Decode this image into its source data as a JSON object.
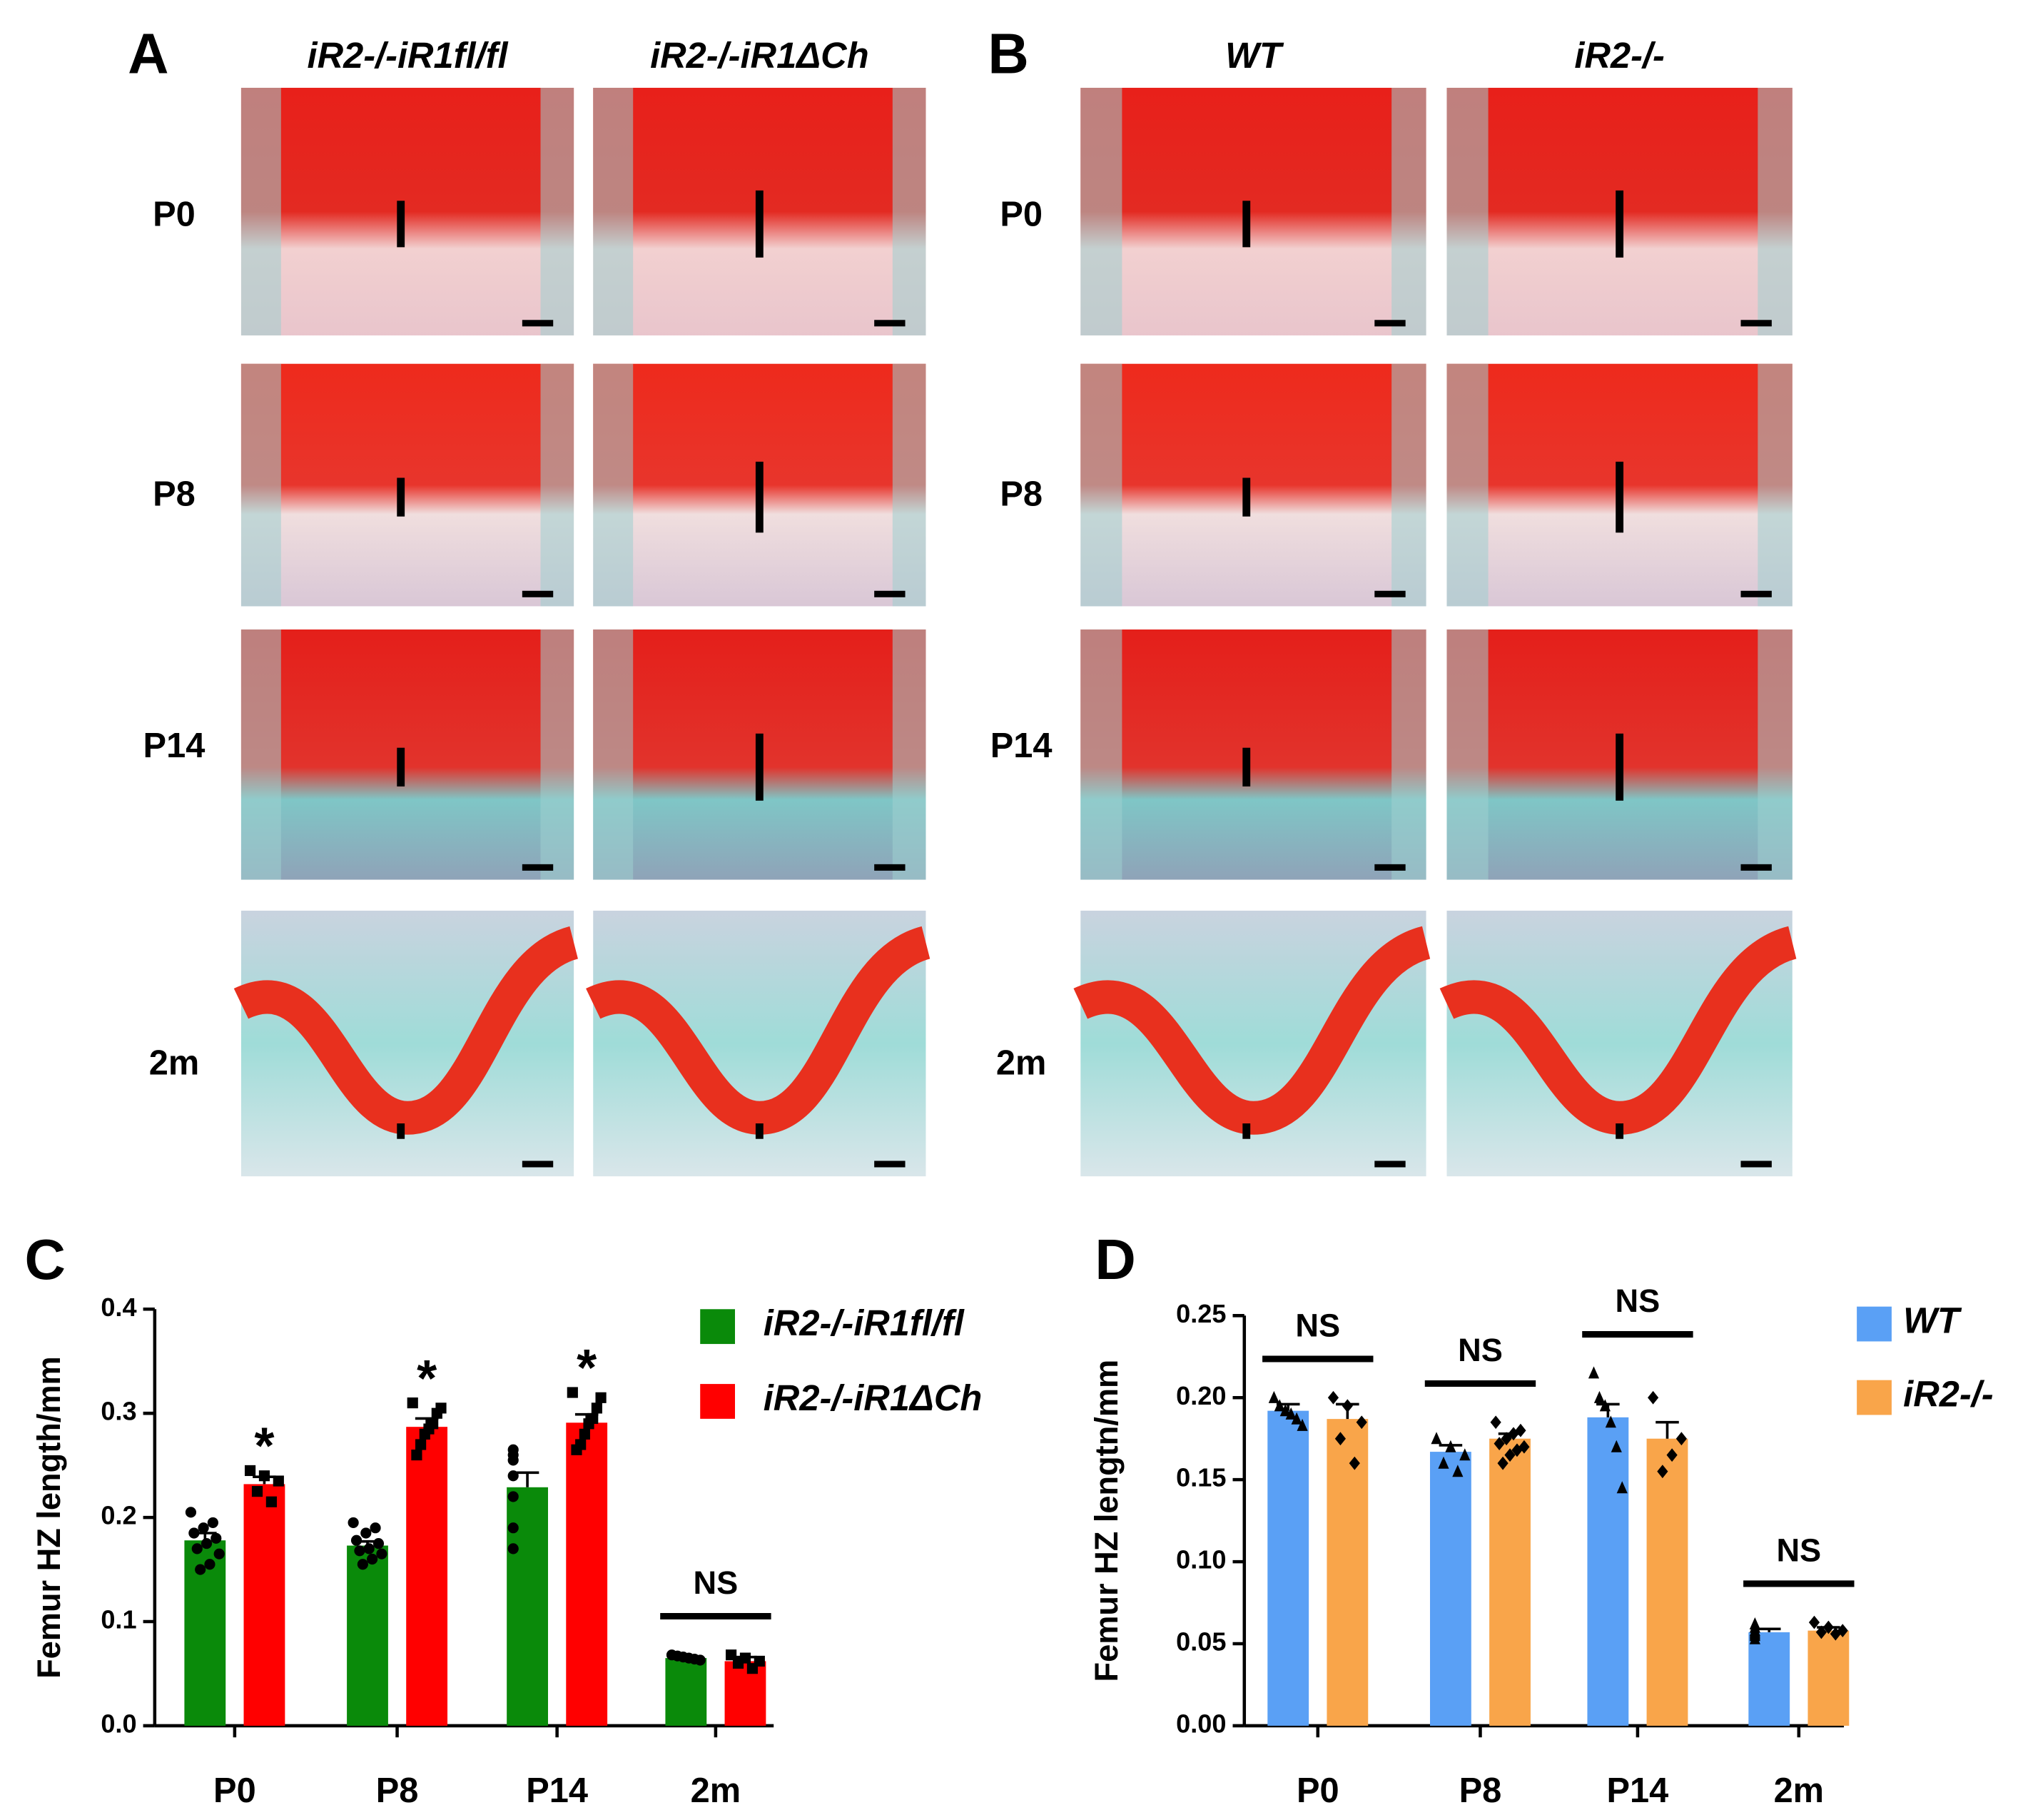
{
  "panels": [
    {
      "label": "A",
      "columns": [
        "iR2-/-iR1fl/fl",
        "iR2-/-iR1ΔCh"
      ],
      "rows": [
        "P0",
        "P8",
        "P14",
        "2m"
      ]
    },
    {
      "label": "B",
      "columns": [
        "WT",
        "iR2-/-"
      ],
      "rows": [
        "P0",
        "P8",
        "P14",
        "2m"
      ]
    }
  ],
  "chart_data": [
    {
      "type": "bar",
      "panel": "C",
      "y_label": "Femur HZ length/mm",
      "categories": [
        "P0",
        "P8",
        "P14",
        "2m"
      ],
      "ylim": [
        0,
        0.4
      ],
      "yticks": [
        {
          "value": 0,
          "label": "0.0"
        },
        0.1,
        0.2,
        0.3,
        0.4
      ],
      "series": [
        {
          "name": "iR2-/-iR1fl/fl",
          "color": "#0a8a0a",
          "marker": "circle",
          "values": [
            0.178,
            0.173,
            0.229,
            0.065
          ],
          "errors": [
            0.007,
            0.004,
            0.014,
            0.002
          ],
          "points": [
            [
              0.205,
              0.195,
              0.19,
              0.185,
              0.18,
              0.175,
              0.17,
              0.165,
              0.155,
              0.15
            ],
            [
              0.195,
              0.19,
              0.185,
              0.178,
              0.175,
              0.17,
              0.168,
              0.165,
              0.16,
              0.155
            ],
            [
              0.265,
              0.26,
              0.255,
              0.24,
              0.22,
              0.19,
              0.17
            ],
            [
              0.068,
              0.067,
              0.066,
              0.065,
              0.064,
              0.063
            ]
          ]
        },
        {
          "name": "iR2-/-iR1ΔCh",
          "color": "#ff0000",
          "marker": "square",
          "values": [
            0.232,
            0.287,
            0.291,
            0.062
          ],
          "errors": [
            0.007,
            0.008,
            0.008,
            0.004
          ],
          "points": [
            [
              0.245,
              0.24,
              0.235,
              0.225,
              0.215
            ],
            [
              0.31,
              0.305,
              0.3,
              0.29,
              0.285,
              0.28,
              0.27,
              0.26
            ],
            [
              0.32,
              0.315,
              0.305,
              0.295,
              0.29,
              0.28,
              0.27,
              0.265
            ],
            [
              0.068,
              0.065,
              0.062,
              0.06,
              0.055
            ]
          ]
        }
      ],
      "annotations": [
        {
          "text": "*",
          "category": 0,
          "series": 1
        },
        {
          "text": "*",
          "category": 1,
          "series": 1
        },
        {
          "text": "*",
          "category": 2,
          "series": 1
        },
        {
          "text": "NS",
          "category": 3
        }
      ]
    },
    {
      "type": "bar",
      "panel": "D",
      "y_label": "Femur HZ lengtn/mm",
      "categories": [
        "P0",
        "P8",
        "P14",
        "2m"
      ],
      "ylim": [
        0,
        0.25
      ],
      "yticks": [
        {
          "value": 0,
          "label": "0.00"
        },
        0.05,
        {
          "value": 0.1,
          "label": "0.10"
        },
        0.15,
        {
          "value": 0.2,
          "label": "0.20"
        },
        0.25
      ],
      "series": [
        {
          "name": "WT",
          "color": "#5aa0f5",
          "marker": "triangle",
          "values": [
            0.192,
            0.167,
            0.188,
            0.057
          ],
          "errors": [
            0.004,
            0.004,
            0.008,
            0.002
          ],
          "points": [
            [
              0.2,
              0.195,
              0.192,
              0.19,
              0.187,
              0.183
            ],
            [
              0.175,
              0.17,
              0.165,
              0.16,
              0.155
            ],
            [
              0.215,
              0.2,
              0.195,
              0.185,
              0.17,
              0.145
            ],
            [
              0.062,
              0.06,
              0.058,
              0.057,
              0.056,
              0.055,
              0.053
            ]
          ]
        },
        {
          "name": "iR2-/-",
          "color": "#f9a54a",
          "marker": "diamond",
          "values": [
            0.187,
            0.175,
            0.175,
            0.058
          ],
          "errors": [
            0.009,
            0.003,
            0.01,
            0.002
          ],
          "points": [
            [
              0.2,
              0.195,
              0.185,
              0.175,
              0.16
            ],
            [
              0.185,
              0.18,
              0.178,
              0.175,
              0.172,
              0.17,
              0.168,
              0.165,
              0.16
            ],
            [
              0.2,
              0.175,
              0.165,
              0.155
            ],
            [
              0.063,
              0.06,
              0.058,
              0.057,
              0.056
            ]
          ]
        }
      ],
      "annotations": [
        {
          "text": "NS",
          "category": 0
        },
        {
          "text": "NS",
          "category": 1
        },
        {
          "text": "NS",
          "category": 2
        },
        {
          "text": "NS",
          "category": 3
        }
      ]
    }
  ]
}
